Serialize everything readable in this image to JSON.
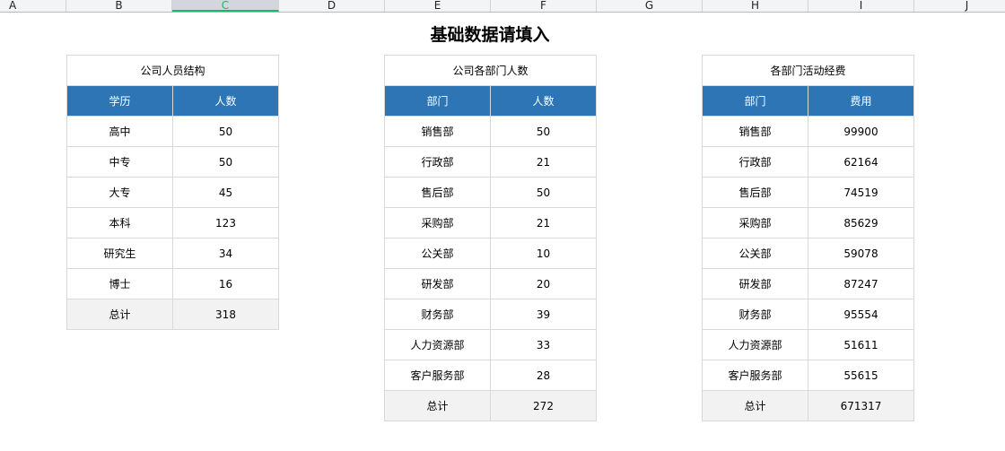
{
  "columns": [
    "A",
    "B",
    "C",
    "D",
    "E",
    "F",
    "G",
    "H",
    "I",
    "J"
  ],
  "selected_column": "C",
  "title": "基础数据请填入",
  "tables": [
    {
      "caption": "公司人员结构",
      "headers": [
        "学历",
        "人数"
      ],
      "rows": [
        [
          "高中",
          "50"
        ],
        [
          "中专",
          "50"
        ],
        [
          "大专",
          "45"
        ],
        [
          "本科",
          "123"
        ],
        [
          "研究生",
          "34"
        ],
        [
          "博士",
          "16"
        ]
      ],
      "total": [
        "总计",
        "318"
      ]
    },
    {
      "caption": "公司各部门人数",
      "headers": [
        "部门",
        "人数"
      ],
      "rows": [
        [
          "销售部",
          "50"
        ],
        [
          "行政部",
          "21"
        ],
        [
          "售后部",
          "50"
        ],
        [
          "采购部",
          "21"
        ],
        [
          "公关部",
          "10"
        ],
        [
          "研发部",
          "20"
        ],
        [
          "财务部",
          "39"
        ],
        [
          "人力资源部",
          "33"
        ],
        [
          "客户服务部",
          "28"
        ]
      ],
      "total": [
        "总计",
        "272"
      ]
    },
    {
      "caption": "各部门活动经费",
      "headers": [
        "部门",
        "费用"
      ],
      "rows": [
        [
          "销售部",
          "99900"
        ],
        [
          "行政部",
          "62164"
        ],
        [
          "售后部",
          "74519"
        ],
        [
          "采购部",
          "85629"
        ],
        [
          "公关部",
          "59078"
        ],
        [
          "研发部",
          "87247"
        ],
        [
          "财务部",
          "95554"
        ],
        [
          "人力资源部",
          "51611"
        ],
        [
          "客户服务部",
          "55615"
        ]
      ],
      "total": [
        "总计",
        "671317"
      ]
    }
  ],
  "colors": {
    "header_blue": "#2e75b6",
    "total_gray": "#f2f2f2",
    "selected_accent": "#1fb56b"
  }
}
